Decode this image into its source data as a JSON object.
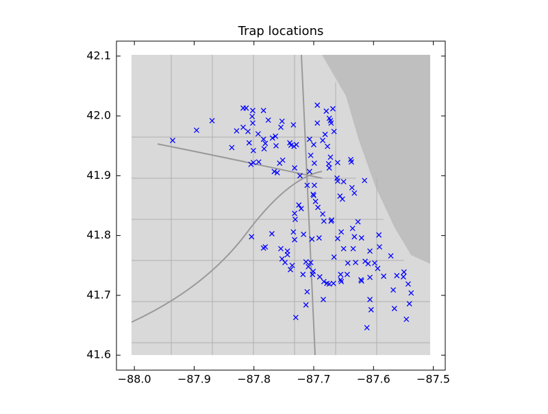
{
  "chart_data": {
    "type": "scatter",
    "title": "Trap locations",
    "marker": "x",
    "color": "#0000ff",
    "xlim": [
      -88.03,
      -87.48
    ],
    "ylim": [
      41.575,
      42.125
    ],
    "xticks": [
      {
        "value": -88,
        "label": "−88.0"
      },
      {
        "value": -87.9,
        "label": "−87.9"
      },
      {
        "value": -87.8,
        "label": "−87.8"
      },
      {
        "value": -87.7,
        "label": "−87.7"
      },
      {
        "value": -87.6,
        "label": "−87.6"
      },
      {
        "value": -87.5,
        "label": "−87.5"
      }
    ],
    "yticks": [
      41.6,
      41.7,
      41.8,
      41.9,
      {
        "value": 42,
        "label": "42.0"
      },
      42.1
    ],
    "x": [
      -87.936,
      -87.896,
      -87.87,
      -87.818,
      -87.813,
      -87.802,
      -87.784,
      -87.803,
      -87.802,
      -87.829,
      -87.818,
      -87.81,
      -87.793,
      -87.776,
      -87.753,
      -87.755,
      -87.734,
      -87.784,
      -87.781,
      -87.808,
      -87.764,
      -87.769,
      -87.783,
      -87.837,
      -87.801,
      -87.763,
      -87.74,
      -87.738,
      -87.733,
      -87.729,
      -87.707,
      -87.7,
      -87.685,
      -87.694,
      -87.681,
      -87.666,
      -87.672,
      -87.694,
      -87.679,
      -87.668,
      -87.674,
      -87.671,
      -87.805,
      -87.801,
      -87.792,
      -87.757,
      -87.752,
      -87.766,
      -87.761,
      -87.732,
      -87.723,
      -87.707,
      -87.699,
      -87.705,
      -87.675,
      -87.674,
      -87.672,
      -87.677,
      -87.66,
      -87.661,
      -87.66,
      -87.65,
      -87.638,
      -87.637,
      -87.656,
      -87.652,
      -87.636,
      -87.632,
      -87.615,
      -87.699,
      -87.711,
      -87.701,
      -87.7,
      -87.697,
      -87.725,
      -87.721,
      -87.693,
      -87.685,
      -87.683,
      -87.67,
      -87.671,
      -87.732,
      -87.731,
      -87.734,
      -87.717,
      -87.804,
      -87.77,
      -87.755,
      -87.784,
      -87.781,
      -87.744,
      -87.744,
      -87.753,
      -87.748,
      -87.732,
      -87.703,
      -87.691,
      -87.713,
      -87.705,
      -87.709,
      -87.701,
      -87.666,
      -87.66,
      -87.654,
      -87.65,
      -87.635,
      -87.632,
      -87.626,
      -87.62,
      -87.634,
      -87.63,
      -87.643,
      -87.614,
      -87.609,
      -87.606,
      -87.598,
      -87.591,
      -87.59,
      -87.571,
      -87.561,
      -87.549,
      -87.55,
      -87.542,
      -87.537,
      -87.54,
      -87.567,
      -87.565,
      -87.545,
      -87.583,
      -87.593,
      -87.606,
      -87.621,
      -87.655,
      -87.655,
      -87.654,
      -87.674,
      -87.667,
      -87.678,
      -87.683,
      -87.69,
      -87.718,
      -87.702,
      -87.711,
      -87.713,
      -87.73,
      -87.739,
      -87.736,
      -87.684,
      -87.606,
      -87.604,
      -87.611,
      -87.62,
      -87.644
    ],
    "y": [
      41.959,
      41.976,
      41.992,
      42.013,
      42.013,
      42.009,
      42.009,
      41.999,
      41.988,
      41.975,
      41.981,
      41.974,
      41.97,
      41.993,
      41.991,
      41.981,
      41.985,
      41.961,
      41.954,
      41.955,
      41.966,
      41.963,
      41.945,
      41.947,
      41.942,
      41.95,
      41.955,
      41.951,
      41.949,
      41.952,
      41.961,
      41.952,
      41.959,
      41.988,
      41.969,
      41.974,
      41.992,
      42.018,
      42.008,
      42.012,
      41.996,
      41.988,
      41.919,
      41.922,
      41.923,
      41.921,
      41.926,
      41.907,
      41.905,
      41.913,
      41.9,
      41.907,
      41.921,
      41.934,
      41.92,
      41.913,
      41.931,
      41.949,
      41.922,
      41.896,
      41.891,
      41.89,
      41.927,
      41.923,
      41.866,
      41.861,
      41.88,
      41.871,
      41.892,
      41.884,
      41.884,
      41.869,
      41.867,
      41.857,
      41.851,
      41.845,
      41.847,
      41.836,
      41.824,
      41.826,
      41.824,
      41.837,
      41.827,
      41.806,
      41.802,
      41.798,
      41.803,
      41.778,
      41.779,
      41.781,
      41.774,
      41.768,
      41.761,
      41.755,
      41.793,
      41.794,
      41.796,
      41.756,
      41.755,
      41.748,
      41.74,
      41.764,
      41.795,
      41.806,
      41.778,
      41.812,
      41.798,
      41.823,
      41.796,
      41.778,
      41.755,
      41.754,
      41.757,
      41.753,
      41.774,
      41.754,
      41.801,
      41.781,
      41.766,
      41.733,
      41.739,
      41.731,
      41.719,
      41.704,
      41.686,
      41.709,
      41.678,
      41.66,
      41.732,
      41.745,
      41.73,
      41.726,
      41.735,
      41.726,
      41.723,
      41.719,
      41.72,
      41.72,
      41.723,
      41.731,
      41.735,
      41.735,
      41.706,
      41.684,
      41.663,
      41.743,
      41.75,
      41.693,
      41.693,
      41.676,
      41.646,
      41.724,
      41.735
    ]
  }
}
